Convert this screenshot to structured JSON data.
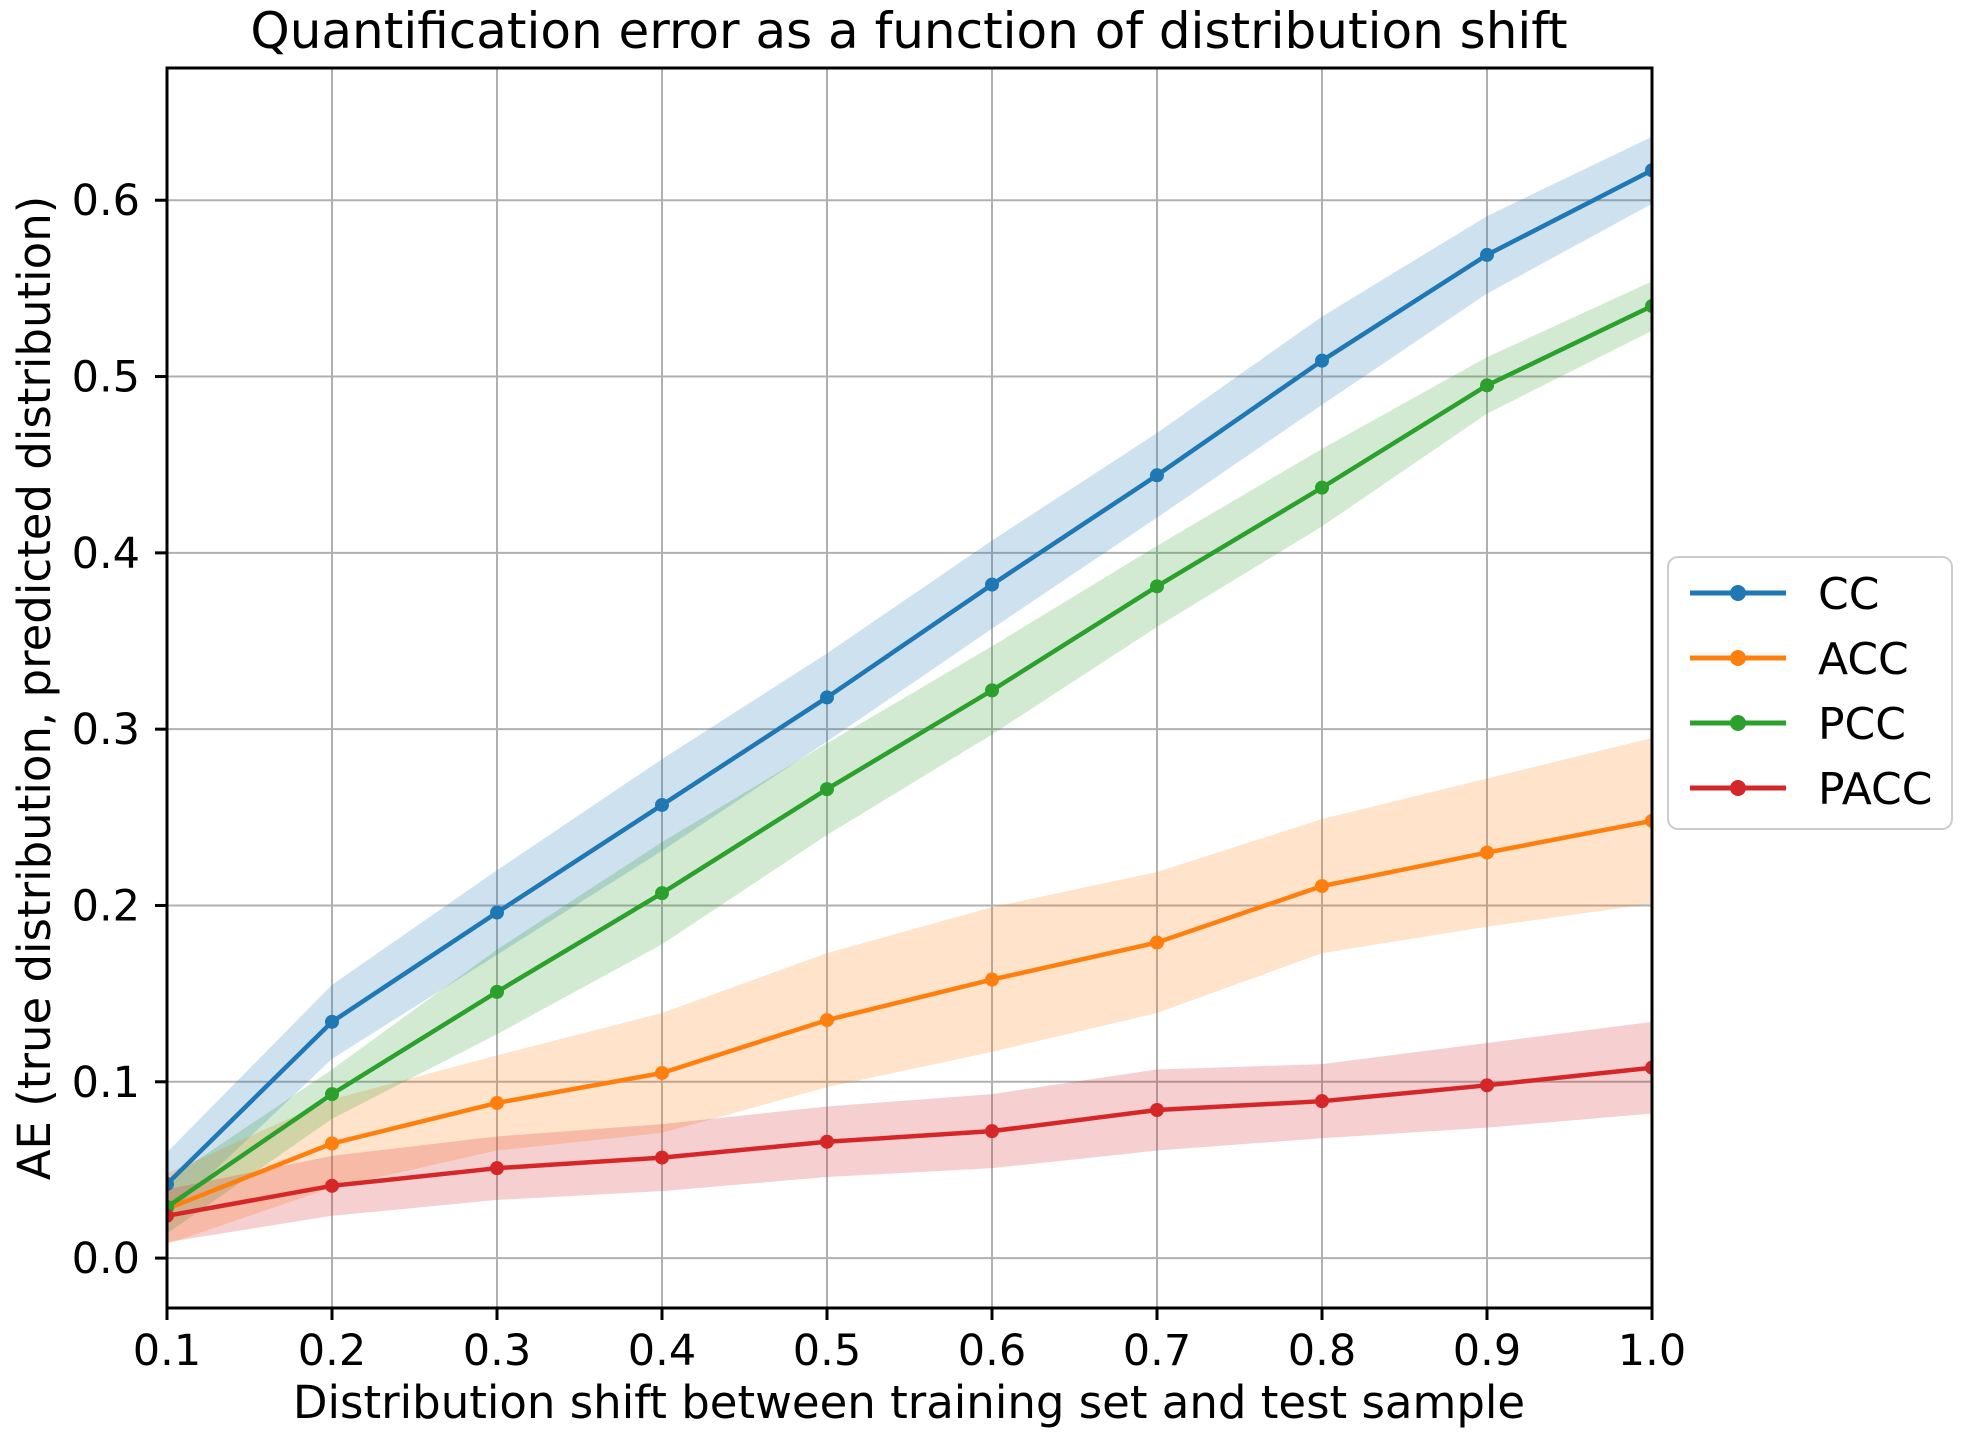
{
  "chart_data": {
    "type": "line",
    "title": "Quantification error as a function of distribution shift",
    "xlabel": "Distribution shift between training set and test sample",
    "ylabel": "AE (true distribution, predicted distribution)",
    "x": [
      0.1,
      0.2,
      0.3,
      0.4,
      0.5,
      0.6,
      0.7,
      0.8,
      0.9,
      1.0
    ],
    "xlim": [
      0.1,
      1.0
    ],
    "ylim": [
      -0.0283,
      0.675
    ],
    "xticks": [
      "0.1",
      "0.2",
      "0.3",
      "0.4",
      "0.5",
      "0.6",
      "0.7",
      "0.8",
      "0.9",
      "1.0"
    ],
    "yticks": [
      "0.0",
      "0.1",
      "0.2",
      "0.3",
      "0.4",
      "0.5",
      "0.6"
    ],
    "grid": true,
    "grid_color": "#b0b0b0",
    "legend_position": "outside-right",
    "band_alpha": 0.22,
    "series": [
      {
        "name": "CC",
        "color": "#1f77b4",
        "values": [
          0.042,
          0.134,
          0.196,
          0.257,
          0.318,
          0.382,
          0.444,
          0.509,
          0.569,
          0.617
        ],
        "band_lower": [
          0.024,
          0.113,
          0.172,
          0.231,
          0.293,
          0.357,
          0.42,
          0.484,
          0.547,
          0.598
        ],
        "band_upper": [
          0.06,
          0.155,
          0.22,
          0.283,
          0.343,
          0.407,
          0.468,
          0.534,
          0.591,
          0.636
        ]
      },
      {
        "name": "ACC",
        "color": "#ff7f0e",
        "values": [
          0.028,
          0.065,
          0.088,
          0.105,
          0.135,
          0.158,
          0.179,
          0.211,
          0.23,
          0.248
        ],
        "band_lower": [
          0.008,
          0.04,
          0.061,
          0.071,
          0.097,
          0.117,
          0.139,
          0.173,
          0.188,
          0.201
        ],
        "band_upper": [
          0.048,
          0.09,
          0.115,
          0.139,
          0.173,
          0.199,
          0.219,
          0.249,
          0.272,
          0.295
        ]
      },
      {
        "name": "PCC",
        "color": "#2ca02c",
        "values": [
          0.029,
          0.093,
          0.151,
          0.207,
          0.266,
          0.322,
          0.381,
          0.437,
          0.495,
          0.54
        ],
        "band_lower": [
          0.014,
          0.079,
          0.127,
          0.178,
          0.24,
          0.297,
          0.358,
          0.415,
          0.479,
          0.526
        ],
        "band_upper": [
          0.044,
          0.107,
          0.175,
          0.236,
          0.292,
          0.347,
          0.404,
          0.459,
          0.511,
          0.554
        ]
      },
      {
        "name": "PACC",
        "color": "#d62728",
        "values": [
          0.024,
          0.041,
          0.051,
          0.057,
          0.066,
          0.072,
          0.084,
          0.089,
          0.098,
          0.108
        ],
        "band_lower": [
          0.009,
          0.024,
          0.033,
          0.038,
          0.046,
          0.051,
          0.061,
          0.068,
          0.074,
          0.082
        ],
        "band_upper": [
          0.039,
          0.058,
          0.069,
          0.076,
          0.086,
          0.093,
          0.107,
          0.11,
          0.122,
          0.134
        ]
      }
    ]
  }
}
